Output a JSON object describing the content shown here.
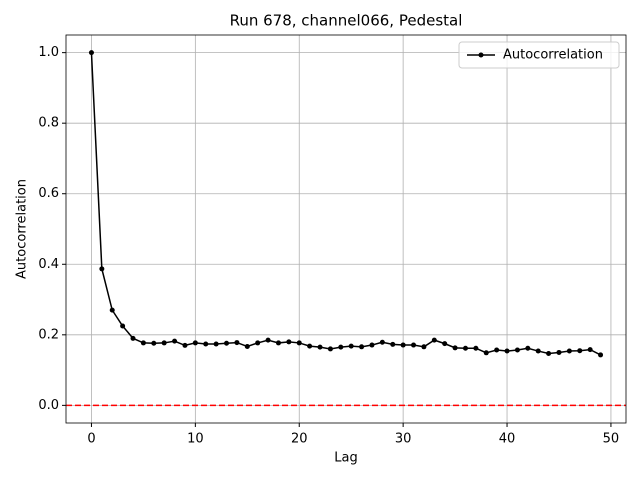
{
  "chart_data": {
    "type": "line",
    "title": "Run 678, channel066, Pedestal",
    "xlabel": "Lag",
    "ylabel": "Autocorrelation",
    "x": [
      0,
      1,
      2,
      3,
      4,
      5,
      6,
      7,
      8,
      9,
      10,
      11,
      12,
      13,
      14,
      15,
      16,
      17,
      18,
      19,
      20,
      21,
      22,
      23,
      24,
      25,
      26,
      27,
      28,
      29,
      30,
      31,
      32,
      33,
      34,
      35,
      36,
      37,
      38,
      39,
      40,
      41,
      42,
      43,
      44,
      45,
      46,
      47,
      48,
      49
    ],
    "series": [
      {
        "name": "Autocorrelation",
        "color": "#000000",
        "values": [
          1.0,
          0.387,
          0.27,
          0.225,
          0.19,
          0.177,
          0.176,
          0.177,
          0.182,
          0.17,
          0.177,
          0.174,
          0.174,
          0.176,
          0.178,
          0.167,
          0.177,
          0.185,
          0.177,
          0.18,
          0.177,
          0.168,
          0.165,
          0.16,
          0.165,
          0.168,
          0.166,
          0.171,
          0.179,
          0.173,
          0.171,
          0.171,
          0.166,
          0.185,
          0.175,
          0.163,
          0.162,
          0.162,
          0.149,
          0.157,
          0.154,
          0.157,
          0.162,
          0.154,
          0.147,
          0.15,
          0.154,
          0.155,
          0.158,
          0.143
        ]
      }
    ],
    "reference_line": {
      "value": 0,
      "color": "#ff0000"
    },
    "xlim": [
      -2.45,
      51.45
    ],
    "xticks": [
      0,
      10,
      20,
      30,
      40,
      50
    ],
    "ylim": [
      -0.05,
      1.05
    ],
    "yticks": [
      {
        "value": 0,
        "label": "0.0"
      },
      0.2,
      0.4,
      0.6,
      0.8,
      {
        "value": 1,
        "label": "1.0"
      }
    ],
    "grid": true,
    "legend": "upper right"
  }
}
